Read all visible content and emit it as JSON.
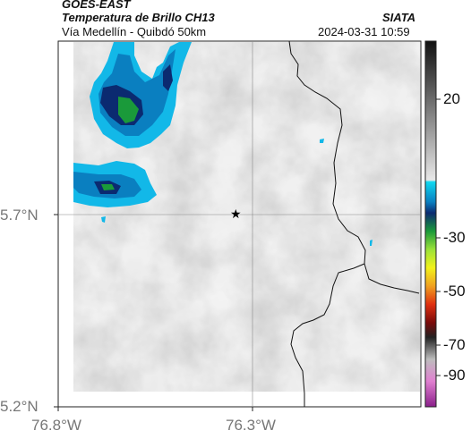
{
  "header": {
    "satellite": "GOES-EAST",
    "product": "Temperatura de Brillo CH13",
    "route": "Vía Medellín - Quibdó 50km",
    "agency": "SIATA",
    "timestamp": "2024-03-31 10:59"
  },
  "axes": {
    "lat_labels": [
      "5.7°N",
      "5.2°N"
    ],
    "lon_labels": [
      "76.8°W",
      "76.3°W"
    ]
  },
  "colorbar": {
    "ticks": [
      "20",
      "-30",
      "-50",
      "-70",
      "-90"
    ]
  },
  "colors": {
    "cold_cloud_dark": "#0b2a70",
    "cold_cloud_mid": "#0a7fc0",
    "cold_cloud_light": "#12b8e8",
    "deep_convection": "#1a9a3a",
    "background_gray": "#cfcfcf"
  },
  "marker": {
    "symbol": "★"
  }
}
